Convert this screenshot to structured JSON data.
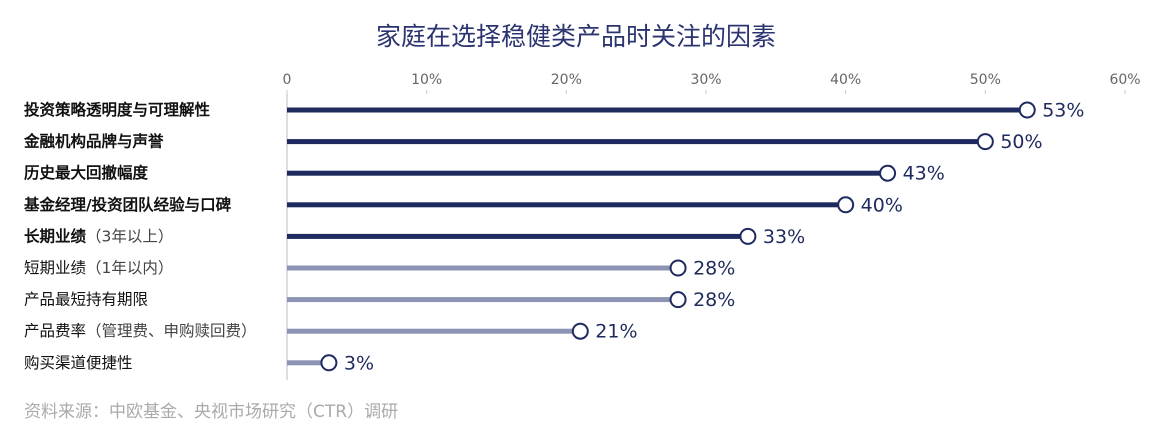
{
  "chart_data": {
    "type": "lollipop-bar",
    "title": "家庭在选择稳健类产品时关注的因素",
    "source": "资料来源：中欧基金、央视市场研究（CTR）调研",
    "categories": [
      "投资策略透明度与可理解性",
      "金融机构品牌与声誉",
      "历史最大回撤幅度",
      "基金经理/投资团队经验与口碑",
      "长期业绩（3年以上）",
      "短期业绩（1年以内）",
      "产品最短持有期限",
      "产品费率（管理费、申购赎回费）",
      "购买渠道便捷性"
    ],
    "values": [
      53,
      50,
      43,
      40,
      33,
      28,
      28,
      21,
      3
    ],
    "value_labels": [
      "53%",
      "50%",
      "43%",
      "40%",
      "33%",
      "28%",
      "28%",
      "21%",
      "3%"
    ],
    "colors": [
      "#1f2a5e",
      "#1f2a5e",
      "#1f2a5e",
      "#1f2a5e",
      "#1f2a5e",
      "#8c93b5",
      "#8c93b5",
      "#8c93b5",
      "#8c93b5"
    ],
    "label_bold": [
      true,
      true,
      true,
      true,
      true,
      false,
      false,
      false,
      false
    ],
    "xlim": [
      0,
      60
    ],
    "xticks": [
      0,
      {
        "value": 10,
        "label": "10%"
      },
      {
        "value": 20,
        "label": "20%"
      },
      {
        "value": 30,
        "label": "30%"
      },
      {
        "value": 40,
        "label": "40%"
      },
      {
        "value": 50,
        "label": "50%"
      },
      {
        "value": 60,
        "label": "60%"
      }
    ]
  }
}
